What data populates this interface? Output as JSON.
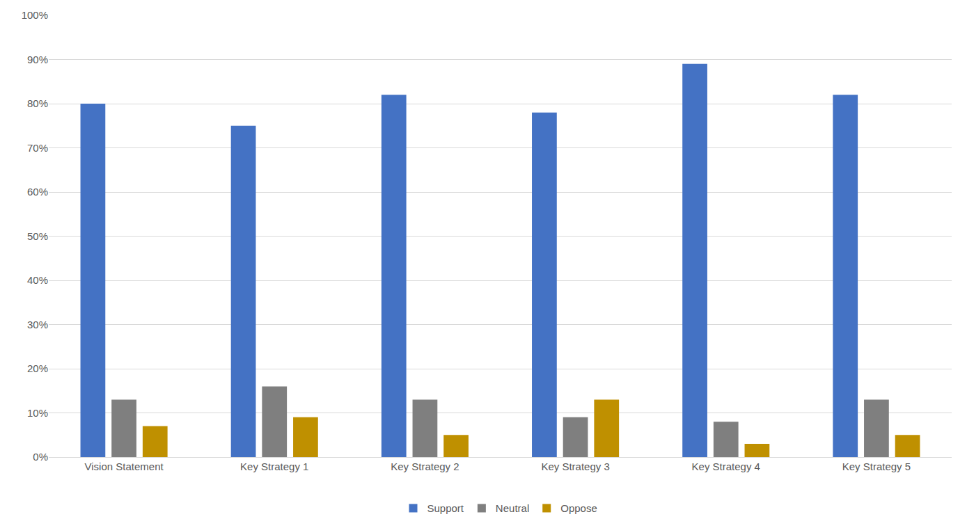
{
  "chart_data": {
    "type": "bar",
    "categories": [
      "Vision Statement",
      "Key Strategy 1",
      "Key Strategy 2",
      "Key Strategy 3",
      "Key Strategy 4",
      "Key Strategy 5"
    ],
    "series": [
      {
        "name": "Support",
        "color": "#4472c4",
        "values": [
          80,
          75,
          82,
          78,
          89,
          82
        ]
      },
      {
        "name": "Neutral",
        "color": "#7f7f7f",
        "values": [
          13,
          16,
          13,
          9,
          8,
          13
        ]
      },
      {
        "name": "Oppose",
        "color": "#bf9000",
        "values": [
          7,
          9,
          5,
          13,
          3,
          5
        ]
      }
    ],
    "ylim": [
      0,
      100
    ],
    "yticks": [
      {
        "value": 0,
        "label": "0%"
      },
      {
        "value": 10,
        "label": "10%"
      },
      {
        "value": 20,
        "label": "20%"
      },
      {
        "value": 30,
        "label": "30%"
      },
      {
        "value": 40,
        "label": "40%"
      },
      {
        "value": 50,
        "label": "50%"
      },
      {
        "value": 60,
        "label": "60%"
      },
      {
        "value": 70,
        "label": "70%"
      },
      {
        "value": 80,
        "label": "80%"
      },
      {
        "value": 90,
        "label": "90%"
      },
      {
        "value": 100,
        "label": "100%"
      }
    ],
    "grid": true,
    "legend": "bottom"
  }
}
